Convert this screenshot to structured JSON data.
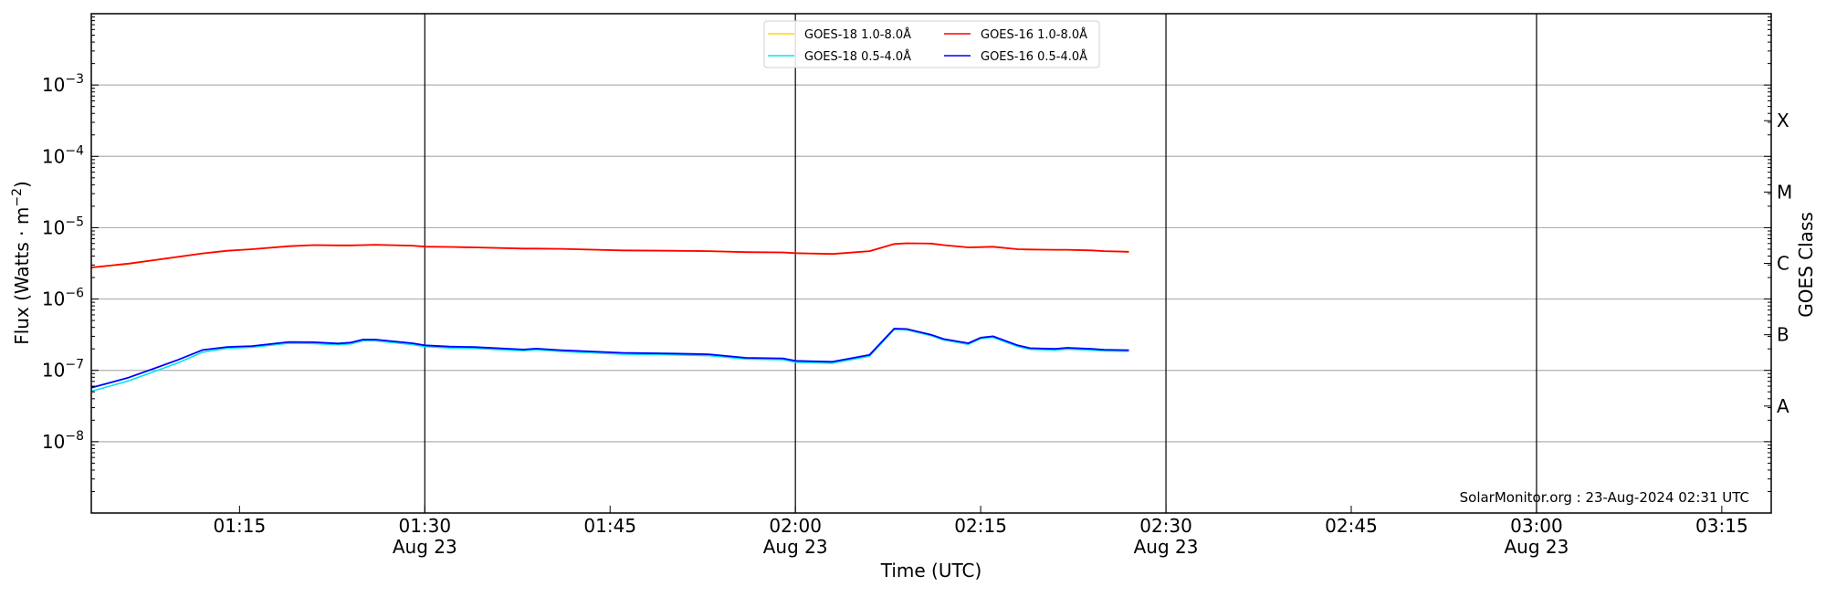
{
  "chart_data": {
    "type": "line",
    "title": "",
    "xlabel": "Time (UTC)",
    "ylabel": "Flux (Watts · m⁻²)",
    "ylabel_parts": {
      "main": "Flux (Watts · m",
      "exp": "−2",
      "end": ")"
    },
    "right_ylabel": "GOES Class",
    "yscale": "log",
    "ylim": [
      1e-09,
      0.01
    ],
    "xlim": [
      "01:03",
      "03:19"
    ],
    "grid": true,
    "legend_placement": "top-center",
    "y_ticks": [
      {
        "value": 0.001,
        "base": "10",
        "exp": "−3"
      },
      {
        "value": 0.0001,
        "base": "10",
        "exp": "−4"
      },
      {
        "value": 1e-05,
        "base": "10",
        "exp": "−5"
      },
      {
        "value": 1e-06,
        "base": "10",
        "exp": "−6"
      },
      {
        "value": 1e-07,
        "base": "10",
        "exp": "−7"
      },
      {
        "value": 1e-08,
        "base": "10",
        "exp": "−8"
      }
    ],
    "class_labels": [
      {
        "label": "X",
        "value": 0.000316
      },
      {
        "label": "M",
        "value": 3.16e-05
      },
      {
        "label": "C",
        "value": 3.16e-06
      },
      {
        "label": "B",
        "value": 3.16e-07
      },
      {
        "label": "A",
        "value": 3.16e-08
      }
    ],
    "x_ticks": [
      {
        "time": "01:15",
        "label": "01:15",
        "date": ""
      },
      {
        "time": "01:30",
        "label": "01:30",
        "date": "Aug 23"
      },
      {
        "time": "01:45",
        "label": "01:45",
        "date": ""
      },
      {
        "time": "02:00",
        "label": "02:00",
        "date": "Aug 23"
      },
      {
        "time": "02:15",
        "label": "02:15",
        "date": ""
      },
      {
        "time": "02:30",
        "label": "02:30",
        "date": "Aug 23"
      },
      {
        "time": "02:45",
        "label": "02:45",
        "date": ""
      },
      {
        "time": "03:00",
        "label": "03:00",
        "date": "Aug 23"
      },
      {
        "time": "03:15",
        "label": "03:15",
        "date": ""
      }
    ],
    "day_lines": [
      "01:30",
      "02:00",
      "02:30",
      "03:00"
    ],
    "x": [
      "01:03",
      "01:06",
      "01:08",
      "01:10",
      "01:12",
      "01:14",
      "01:16",
      "01:19",
      "01:21",
      "01:23",
      "01:24",
      "01:25",
      "01:26",
      "01:29",
      "01:30",
      "01:32",
      "01:34",
      "01:38",
      "01:39",
      "01:41",
      "01:46",
      "01:50",
      "01:53",
      "01:56",
      "01:59",
      "02:00",
      "02:03",
      "02:06",
      "02:08",
      "02:09",
      "02:11",
      "02:12",
      "02:14",
      "02:15",
      "02:16",
      "02:18",
      "02:19",
      "02:21",
      "02:22",
      "02:24",
      "02:25",
      "02:27"
    ],
    "series": [
      {
        "name": "GOES-18 1.0-8.0Å",
        "color": "#ffd700",
        "values": [
          2.75e-06,
          3.1e-06,
          3.48e-06,
          3.88e-06,
          4.34e-06,
          4.73e-06,
          4.98e-06,
          5.48e-06,
          5.68e-06,
          5.63e-06,
          5.63e-06,
          5.68e-06,
          5.74e-06,
          5.58e-06,
          5.41e-06,
          5.36e-06,
          5.28e-06,
          5.08e-06,
          5.08e-06,
          5.03e-06,
          4.78e-06,
          4.73e-06,
          4.68e-06,
          4.53e-06,
          4.48e-06,
          4.38e-06,
          4.26e-06,
          4.68e-06,
          5.88e-06,
          6.03e-06,
          5.98e-06,
          5.68e-06,
          5.28e-06,
          5.33e-06,
          5.38e-06,
          4.98e-06,
          4.93e-06,
          4.88e-06,
          4.88e-06,
          4.78e-06,
          4.68e-06,
          4.58e-06
        ]
      },
      {
        "name": "GOES-16 1.0-8.0Å",
        "color": "#ff0000",
        "values": [
          2.77e-06,
          3.13e-06,
          3.5e-06,
          3.9e-06,
          4.36e-06,
          4.75e-06,
          5e-06,
          5.5e-06,
          5.7e-06,
          5.65e-06,
          5.65e-06,
          5.7e-06,
          5.76e-06,
          5.6e-06,
          5.43e-06,
          5.38e-06,
          5.3e-06,
          5.1e-06,
          5.1e-06,
          5.05e-06,
          4.8e-06,
          4.75e-06,
          4.7e-06,
          4.55e-06,
          4.5e-06,
          4.4e-06,
          4.28e-06,
          4.7e-06,
          5.9e-06,
          6.05e-06,
          6e-06,
          5.7e-06,
          5.3e-06,
          5.35e-06,
          5.4e-06,
          5e-06,
          4.95e-06,
          4.9e-06,
          4.9e-06,
          4.8e-06,
          4.7e-06,
          4.6e-06
        ]
      },
      {
        "name": "GOES-18 0.5-4.0Å",
        "color": "#00e5ee",
        "values": [
          5.1e-08,
          7.1e-08,
          9.5e-08,
          1.27e-07,
          1.8e-07,
          2.04e-07,
          2.1e-07,
          2.4e-07,
          2.38e-07,
          2.28e-07,
          2.35e-07,
          2.6e-07,
          2.6e-07,
          2.3e-07,
          2.15e-07,
          2.06e-07,
          2.03e-07,
          1.88e-07,
          1.94e-07,
          1.84e-07,
          1.69e-07,
          1.65e-07,
          1.61e-07,
          1.44e-07,
          1.41e-07,
          1.3e-07,
          1.26e-07,
          1.58e-07,
          3.75e-07,
          3.7e-07,
          3.06e-07,
          2.66e-07,
          2.32e-07,
          2.78e-07,
          2.9e-07,
          2.16e-07,
          1.97e-07,
          1.92e-07,
          1.99e-07,
          1.92e-07,
          1.87e-07,
          1.85e-07
        ]
      },
      {
        "name": "GOES-16 0.5-4.0Å",
        "color": "#0000ff",
        "values": [
          5.7e-08,
          7.9e-08,
          1.05e-07,
          1.4e-07,
          1.93e-07,
          2.13e-07,
          2.19e-07,
          2.5e-07,
          2.48e-07,
          2.38e-07,
          2.45e-07,
          2.7e-07,
          2.7e-07,
          2.4e-07,
          2.24e-07,
          2.15e-07,
          2.12e-07,
          1.96e-07,
          2.02e-07,
          1.92e-07,
          1.76e-07,
          1.72e-07,
          1.68e-07,
          1.5e-07,
          1.47e-07,
          1.36e-07,
          1.32e-07,
          1.65e-07,
          3.85e-07,
          3.8e-07,
          3.16e-07,
          2.75e-07,
          2.4e-07,
          2.87e-07,
          3e-07,
          2.24e-07,
          2.05e-07,
          2e-07,
          2.07e-07,
          2e-07,
          1.95e-07,
          1.92e-07
        ]
      }
    ],
    "legend_order": [
      0,
      2,
      1,
      3
    ],
    "annotation": "SolarMonitor.org : 23-Aug-2024 02:31 UTC"
  }
}
